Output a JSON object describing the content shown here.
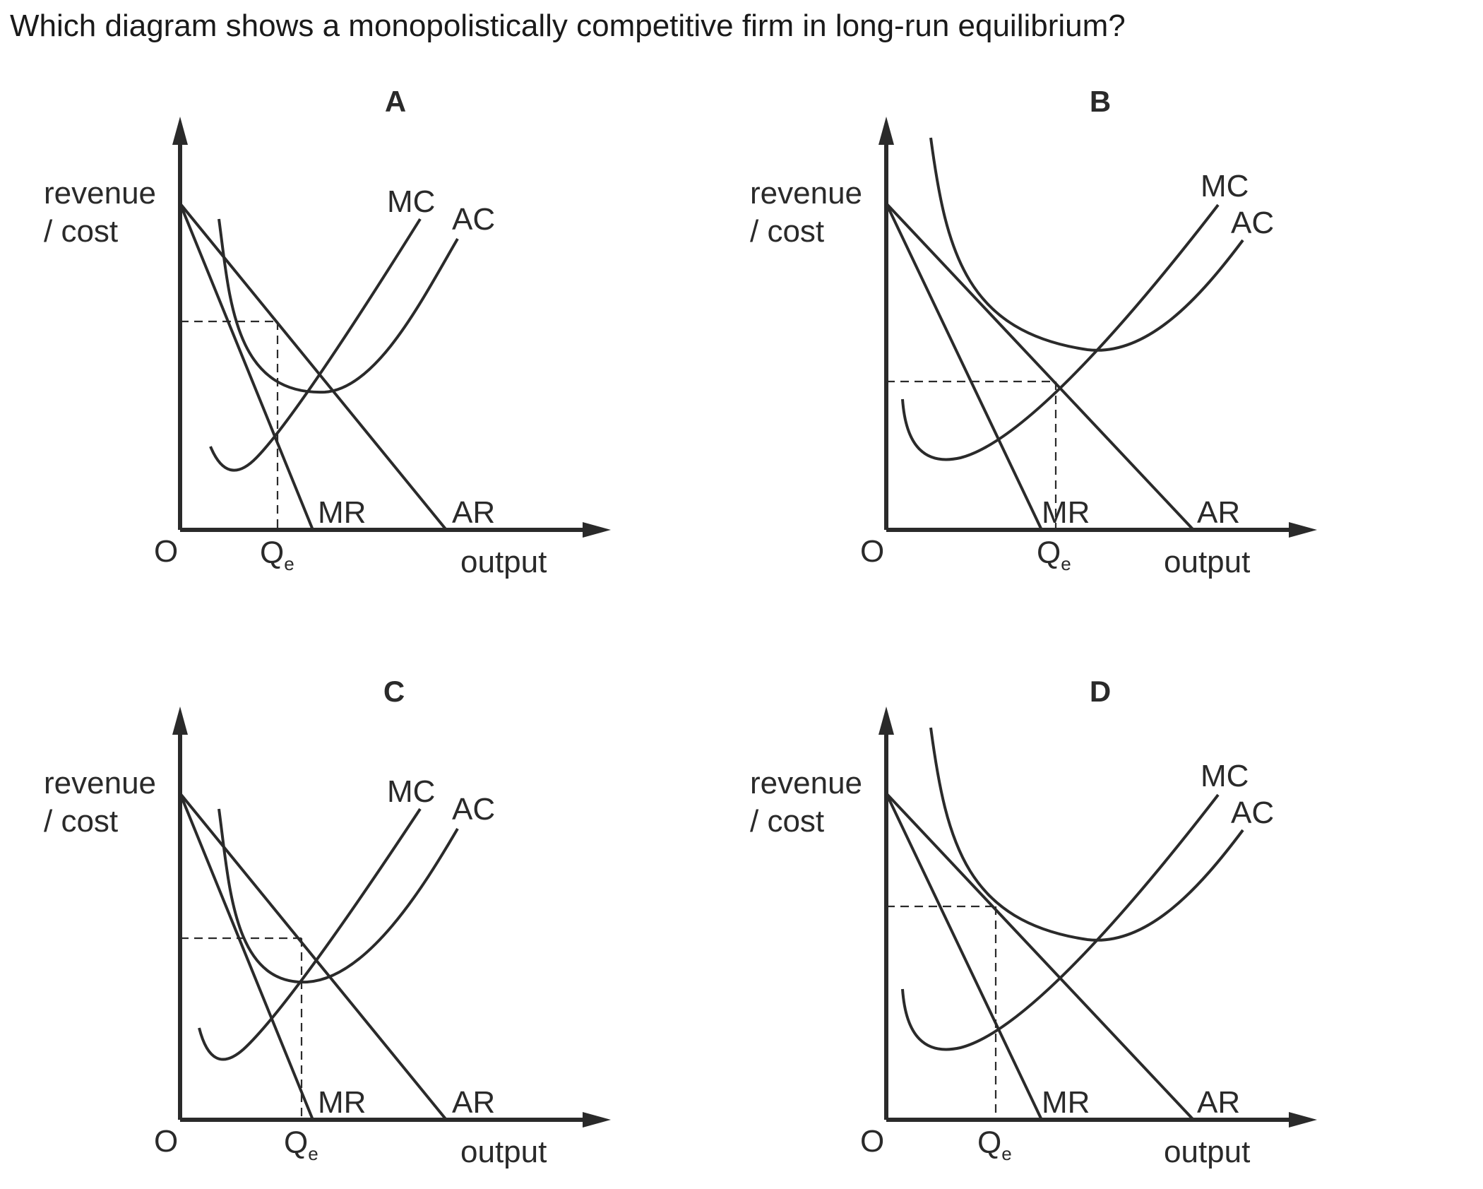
{
  "question": "Which diagram shows a monopolistically competitive firm in long-run equilibrium?",
  "labels": {
    "y_axis_line1": "revenue",
    "y_axis_line2": "/ cost",
    "x_axis": "output",
    "origin": "O",
    "mc": "MC",
    "ac": "AC",
    "mr": "MR",
    "ar": "AR",
    "q": "Q",
    "q_sub": "e"
  },
  "panels": [
    {
      "letter": "A"
    },
    {
      "letter": "B"
    },
    {
      "letter": "C"
    },
    {
      "letter": "D"
    }
  ],
  "colors": {
    "ink": "#2a2a2a",
    "background": "#ffffff"
  }
}
